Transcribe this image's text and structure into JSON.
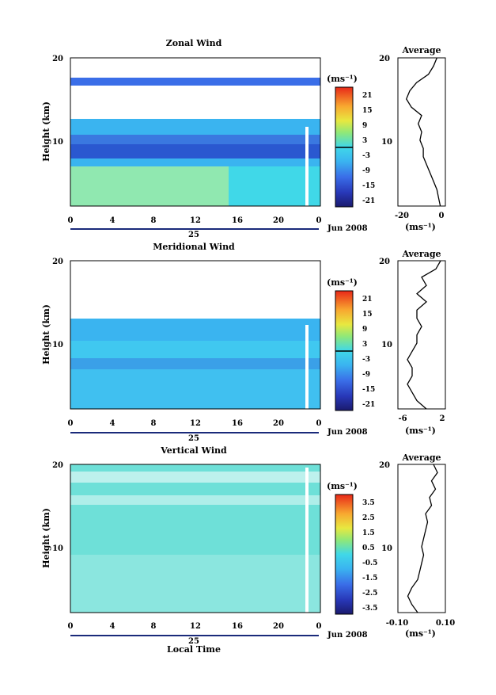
{
  "common": {
    "y_label": "Height (km)",
    "y_ticks": [
      "20",
      "10"
    ],
    "x_ticks": [
      "0",
      "4",
      "8",
      "12",
      "16",
      "20",
      "0"
    ],
    "day_label": "25",
    "month_label": "Jun 2008",
    "x_axis_label": "Local Time",
    "unit_label": "(ms⁻¹)",
    "avg_title": "Average",
    "avg_unit": "(ms⁻¹)"
  },
  "chart_data": [
    {
      "type": "heatmap",
      "title": "Zonal Wind",
      "xlabel": "Local Time",
      "ylabel": "Height (km)",
      "x_range": [
        0,
        24
      ],
      "y_range": [
        2,
        20
      ],
      "colorbar": {
        "ticks": [
          "21",
          "15",
          "9",
          "3",
          "-3",
          "-9",
          "-15",
          "-21"
        ],
        "range": [
          -24,
          24
        ]
      },
      "grid": false,
      "average_profile": {
        "x_ticks": [
          "-20",
          "0"
        ],
        "x_range": [
          -25,
          3
        ],
        "height": [
          2,
          3,
          4,
          5,
          6,
          7,
          8,
          9,
          10,
          11,
          12,
          13,
          14,
          15,
          16,
          17,
          18,
          19,
          20
        ],
        "value": [
          0,
          -1,
          -2,
          -4,
          -6,
          -8,
          -10,
          -10,
          -12,
          -11,
          -13,
          -11,
          -17,
          -20,
          -18,
          -14,
          -7,
          -4,
          -2
        ]
      }
    },
    {
      "type": "heatmap",
      "title": "Meridional Wind",
      "xlabel": "Local Time",
      "ylabel": "Height (km)",
      "x_range": [
        0,
        24
      ],
      "y_range": [
        2,
        20
      ],
      "colorbar": {
        "ticks": [
          "21",
          "15",
          "9",
          "3",
          "-3",
          "-9",
          "-15",
          "-21"
        ],
        "range": [
          -24,
          24
        ]
      },
      "grid": false,
      "average_profile": {
        "x_ticks": [
          "-6",
          "2"
        ],
        "x_range": [
          -7,
          3
        ],
        "height": [
          2,
          3,
          4,
          5,
          6,
          7,
          8,
          9,
          10,
          11,
          12,
          13,
          14,
          15,
          16,
          17,
          18,
          19,
          20
        ],
        "value": [
          -1,
          -3,
          -4,
          -5,
          -4,
          -4,
          -5,
          -4,
          -3,
          -3,
          -2,
          -3,
          -3,
          -1,
          -3,
          -1,
          -2,
          1,
          2
        ]
      }
    },
    {
      "type": "heatmap",
      "title": "Vertical Wind",
      "xlabel": "Local Time",
      "ylabel": "Height (km)",
      "x_range": [
        0,
        24
      ],
      "y_range": [
        2,
        20
      ],
      "colorbar": {
        "ticks": [
          "3.5",
          "2.5",
          "1.5",
          "0.5",
          "-0.5",
          "-1.5",
          "-2.5",
          "-3.5"
        ],
        "range": [
          -4,
          4
        ]
      },
      "grid": false,
      "average_profile": {
        "x_ticks": [
          "-0.10",
          "0.10"
        ],
        "x_range": [
          -0.12,
          0.12
        ],
        "height": [
          2,
          3,
          4,
          5,
          6,
          7,
          8,
          9,
          10,
          11,
          12,
          13,
          14,
          15,
          16,
          17,
          18,
          19,
          20
        ],
        "value": [
          -0.02,
          -0.05,
          -0.07,
          -0.05,
          -0.02,
          -0.01,
          0.0,
          0.01,
          0.0,
          0.01,
          0.02,
          0.03,
          0.02,
          0.05,
          0.04,
          0.07,
          0.05,
          0.08,
          0.06
        ]
      }
    }
  ]
}
